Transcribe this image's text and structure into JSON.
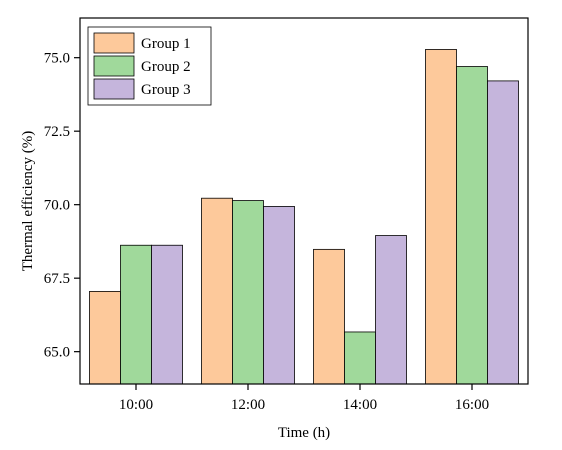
{
  "chart_data": {
    "type": "bar",
    "categories": [
      "10:00",
      "12:00",
      "14:00",
      "16:00"
    ],
    "series": [
      {
        "name": "Group 1",
        "color": "#FDC99B",
        "values": [
          67.05,
          70.22,
          68.48,
          75.28
        ]
      },
      {
        "name": "Group 2",
        "color": "#A0D99B",
        "values": [
          68.62,
          70.14,
          65.67,
          74.7
        ]
      },
      {
        "name": "Group 3",
        "color": "#C5B5DC",
        "values": [
          68.62,
          69.94,
          68.95,
          74.21
        ]
      }
    ],
    "xlabel": "Time (h)",
    "ylabel": "Thermal efficiency (%)",
    "ylim": [
      63.9,
      76.35
    ],
    "yticks": [
      "65.0",
      "67.5",
      "70.0",
      "72.5",
      "75.0"
    ],
    "ytick_values": [
      65.0,
      67.5,
      70.0,
      72.5,
      75.0
    ],
    "legend_position": "top-left",
    "grid": false,
    "bar_outline_color": "#000000"
  }
}
